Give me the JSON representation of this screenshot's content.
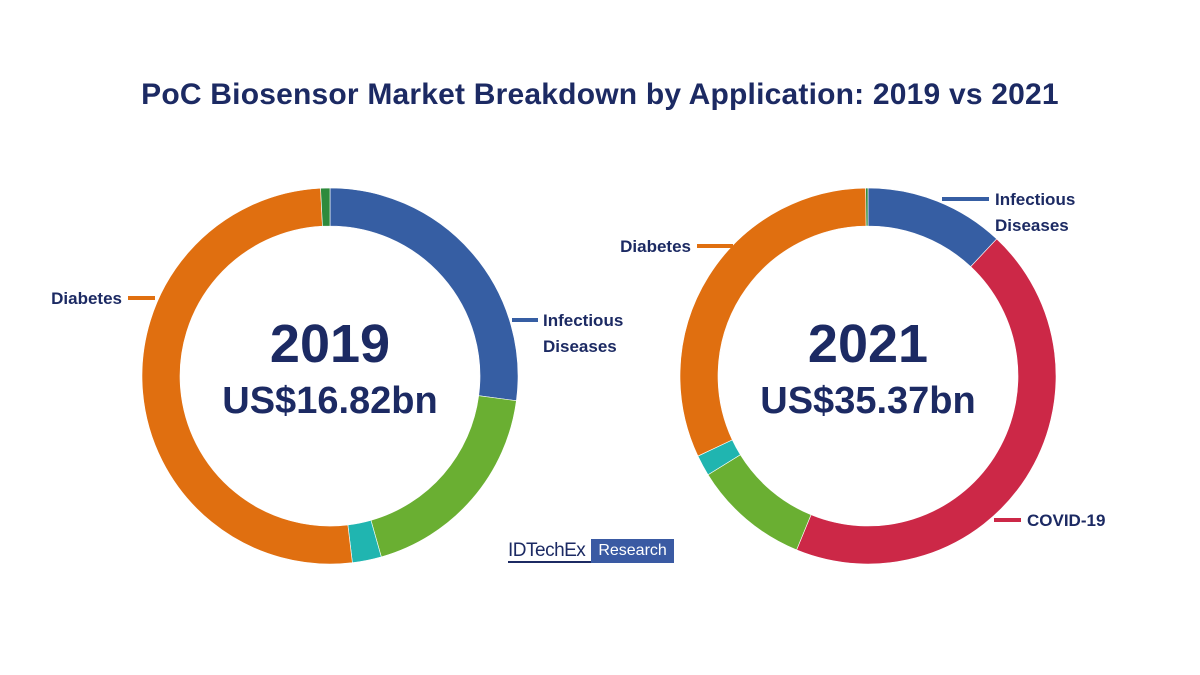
{
  "page": {
    "title": "PoC Biosensor Market Breakdown by Application: 2019 vs 2021"
  },
  "brand": {
    "name": "IDTechEx",
    "tag": "Research"
  },
  "colors": {
    "infectious_diseases": "#365ea3",
    "covid_19": "#cc2847",
    "other_green": "#6aaf32",
    "other_teal": "#20b5b0",
    "diabetes": "#e06f10",
    "other_dark_green": "#2e8a3c",
    "text": "#1c2a63"
  },
  "chart_data": [
    {
      "type": "pie",
      "variant": "donut",
      "year": "2019",
      "total": "US$16.82bn",
      "slices": [
        {
          "label": "Infectious Diseases",
          "share": 0.271,
          "color": "#365ea3",
          "labeled": true
        },
        {
          "label": "",
          "share": 0.185,
          "color": "#6aaf32",
          "labeled": false
        },
        {
          "label": "",
          "share": 0.025,
          "color": "#20b5b0",
          "labeled": false
        },
        {
          "label": "Diabetes",
          "share": 0.511,
          "color": "#e06f10",
          "labeled": true
        },
        {
          "label": "",
          "share": 0.008,
          "color": "#2e8a3c",
          "labeled": false
        }
      ],
      "callouts": [
        {
          "lines": [
            "Infectious",
            "Diseases"
          ],
          "side": "right"
        },
        {
          "lines": [
            "Diabetes"
          ],
          "side": "left"
        }
      ]
    },
    {
      "type": "pie",
      "variant": "donut",
      "year": "2021",
      "total": "US$35.37bn",
      "slices": [
        {
          "label": "Infectious Diseases",
          "share": 0.12,
          "color": "#365ea3",
          "labeled": true
        },
        {
          "label": "COVID-19",
          "share": 0.442,
          "color": "#cc2847",
          "labeled": true
        },
        {
          "label": "",
          "share": 0.1,
          "color": "#6aaf32",
          "labeled": false
        },
        {
          "label": "",
          "share": 0.018,
          "color": "#20b5b0",
          "labeled": false
        },
        {
          "label": "Diabetes",
          "share": 0.318,
          "color": "#e06f10",
          "labeled": true
        },
        {
          "label": "",
          "share": 0.002,
          "color": "#2e8a3c",
          "labeled": false
        }
      ],
      "callouts": [
        {
          "lines": [
            "Infectious",
            "Diseases"
          ],
          "side": "right"
        },
        {
          "lines": [
            "COVID-19"
          ],
          "side": "right"
        },
        {
          "lines": [
            "Diabetes"
          ],
          "side": "left"
        }
      ]
    }
  ]
}
